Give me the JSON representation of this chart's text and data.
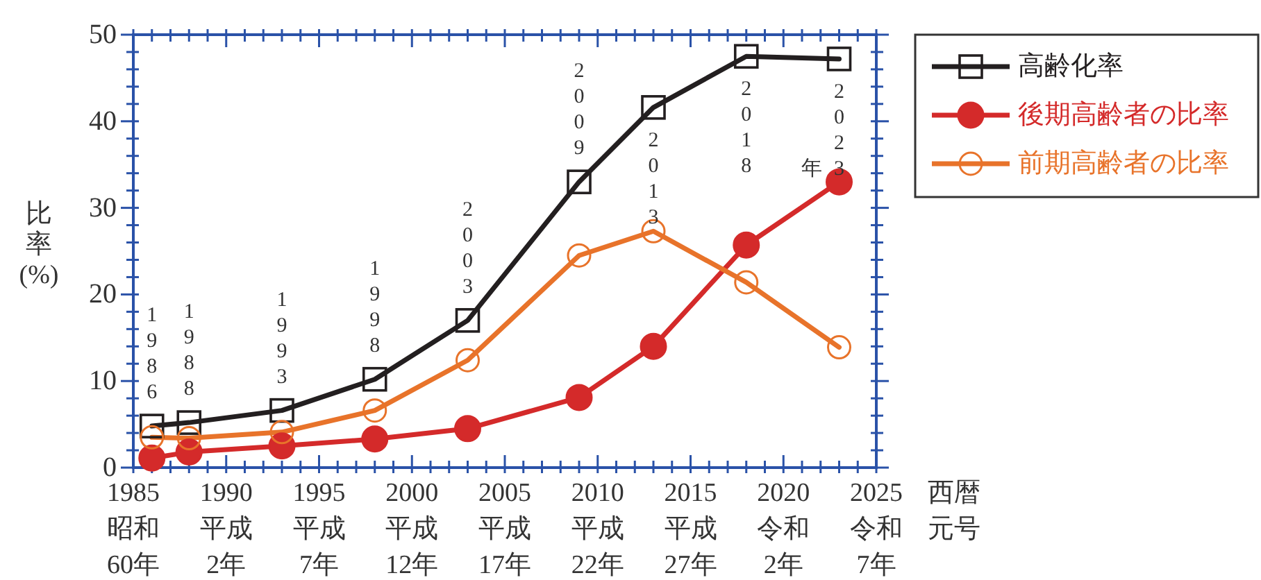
{
  "chart_data": {
    "type": "line",
    "xlabel": "西暦元号",
    "ylabel": "比率(%)",
    "x": [
      1986,
      1988,
      1993,
      1998,
      2003,
      2009,
      2013,
      2018,
      2023
    ],
    "series": [
      {
        "name": "高齢化率",
        "color": "#231f20",
        "marker": "square",
        "values": [
          4.8,
          5.2,
          6.6,
          10.2,
          17.0,
          33.0,
          41.6,
          47.5,
          47.2
        ]
      },
      {
        "name": "後期高齢者の比率",
        "color": "#d42a2a",
        "marker": "circle",
        "values": [
          1.1,
          1.8,
          2.5,
          3.3,
          4.5,
          8.1,
          14.0,
          25.7,
          33.0
        ]
      },
      {
        "name": "前期高齢者の比率",
        "color": "#e8732a",
        "marker": "circle-open",
        "values": [
          3.5,
          3.4,
          4.1,
          6.6,
          12.4,
          24.5,
          27.3,
          21.4,
          13.9
        ]
      }
    ],
    "xlim": [
      1985,
      2025
    ],
    "xticks": [
      1985,
      1990,
      1995,
      2000,
      2005,
      2010,
      2015,
      2020,
      2025
    ],
    "ylim": [
      0,
      50
    ],
    "yticks": [
      0,
      10,
      20,
      30,
      40,
      50
    ],
    "legend": "top right",
    "line_style": "solid",
    "annotations": [
      "1986",
      "1988",
      "1993",
      "1998",
      "2003",
      "2009",
      "2013",
      "2018",
      "2023",
      "年",
      "昭和60年",
      "平成2年",
      "平成7年",
      "平成12年",
      "平成17年",
      "平成22年",
      "平成27年",
      "令和2年",
      "令和7年"
    ]
  }
}
